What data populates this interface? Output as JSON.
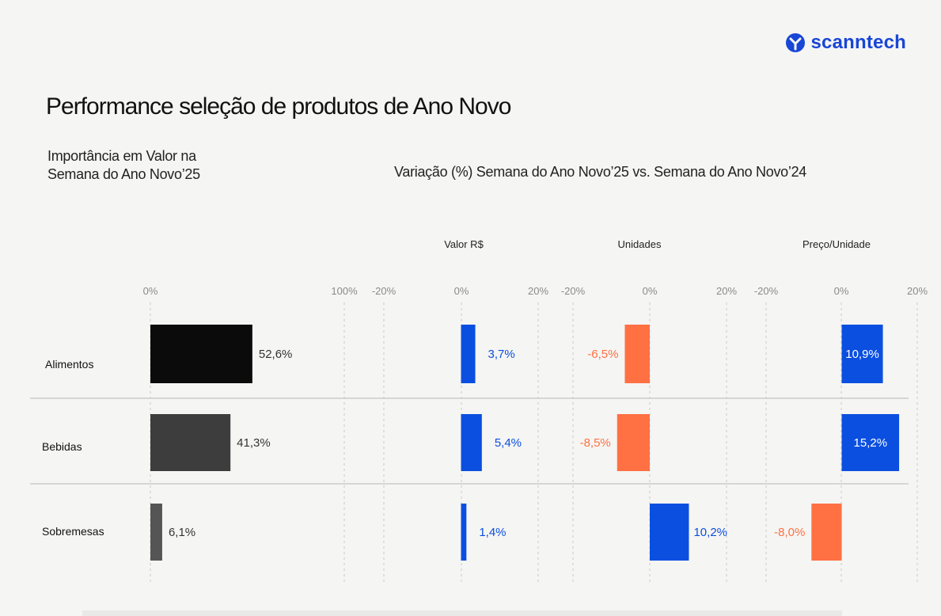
{
  "brand": {
    "name": "scanntech",
    "color": "#1846d6",
    "icon": "scanntech-logo-icon"
  },
  "header": {
    "title": "Performance seleção de produtos de Ano Novo",
    "subtitle_left_line1": "Importância em Valor na",
    "subtitle_left_line2": "Semana do Ano Novo’25",
    "subtitle_right": "Variação (%) Semana do Ano Novo’25 vs. Semana do Ano Novo’24"
  },
  "chart_data": [
    {
      "type": "bar",
      "orientation": "horizontal",
      "categories": [
        "Alimentos",
        "Bebidas",
        "Sobremesas"
      ],
      "values": [
        52.6,
        41.3,
        6.1
      ],
      "labels": [
        "52,6%",
        "41,3%",
        "6,1%"
      ],
      "colors": [
        "#0b0b0b",
        "#3d3d3d",
        "#555555"
      ],
      "xlim": [
        0,
        100
      ],
      "ticks": [
        "0%",
        "100%"
      ],
      "grid": true
    },
    {
      "type": "bar",
      "orientation": "horizontal",
      "title": "Valor R$",
      "categories": [
        "Alimentos",
        "Bebidas",
        "Sobremesas"
      ],
      "values": [
        3.7,
        5.4,
        1.4
      ],
      "labels": [
        "3,7%",
        "5,4%",
        "1,4%"
      ],
      "xlim": [
        -20,
        20
      ],
      "ticks": [
        "-20%",
        "0%",
        "20%"
      ],
      "grid": true
    },
    {
      "type": "bar",
      "orientation": "horizontal",
      "title": "Unidades",
      "categories": [
        "Alimentos",
        "Bebidas",
        "Sobremesas"
      ],
      "values": [
        -6.5,
        -8.5,
        10.2
      ],
      "labels": [
        "-6,5%",
        "-8,5%",
        "10,2%"
      ],
      "xlim": [
        -20,
        20
      ],
      "ticks": [
        "-20%",
        "0%",
        "20%"
      ],
      "grid": true
    },
    {
      "type": "bar",
      "orientation": "horizontal",
      "title": "Preço/Unidade",
      "categories": [
        "Alimentos",
        "Bebidas",
        "Sobremesas"
      ],
      "values": [
        10.9,
        15.2,
        -8.0
      ],
      "labels": [
        "10,9%",
        "15,2%",
        "-8,0%"
      ],
      "xlim": [
        -20,
        20
      ],
      "ticks": [
        "-20%",
        "0%",
        "20%"
      ],
      "grid": true
    }
  ],
  "colors": {
    "positive": "#0b4fe0",
    "negative": "#ff7043",
    "gridline": "#c9c9c9",
    "separator": "#b8b8b8",
    "tick": "#8a8a8a"
  }
}
